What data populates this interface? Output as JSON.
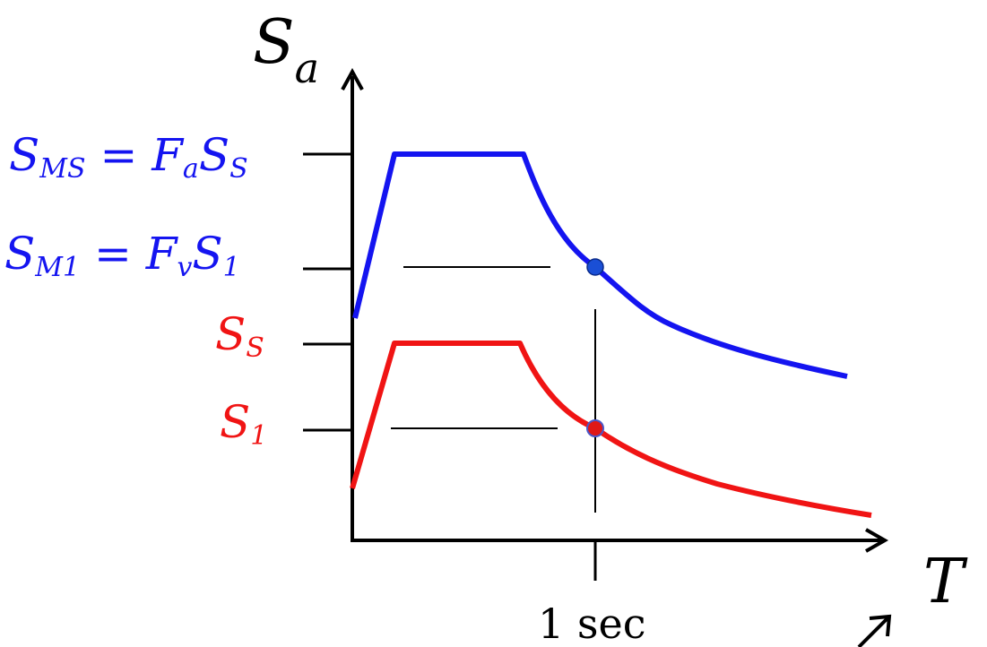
{
  "diagram": {
    "y_axis_label": {
      "main": "S",
      "sub": "a"
    },
    "x_axis_label": "T",
    "x_tick_label": "1 sec",
    "y_levels": [
      {
        "id": "sms",
        "base": "S",
        "sub": "MS",
        "eq": " = F",
        "eq_sub": "a",
        "rhs": "S",
        "rhs_sub": "S",
        "color": "#1414f0"
      },
      {
        "id": "sm1",
        "base": "S",
        "sub": "M1",
        "eq": " = F",
        "eq_sub": "v",
        "rhs": "S",
        "rhs_sub": "1",
        "color": "#1414f0"
      },
      {
        "id": "ss",
        "base": "S",
        "sub": "S",
        "color": "#f01414"
      },
      {
        "id": "s1",
        "base": "S",
        "sub": "1",
        "color": "#f01414"
      }
    ],
    "curves": [
      {
        "id": "mce-spectrum",
        "color": "#1414f0"
      },
      {
        "id": "mapped-spectrum",
        "color": "#f01414"
      }
    ],
    "markers": [
      {
        "id": "mce-point-1sec",
        "color": "#1a4fd6"
      },
      {
        "id": "mapped-point-1sec",
        "color": "#e01818"
      }
    ]
  }
}
